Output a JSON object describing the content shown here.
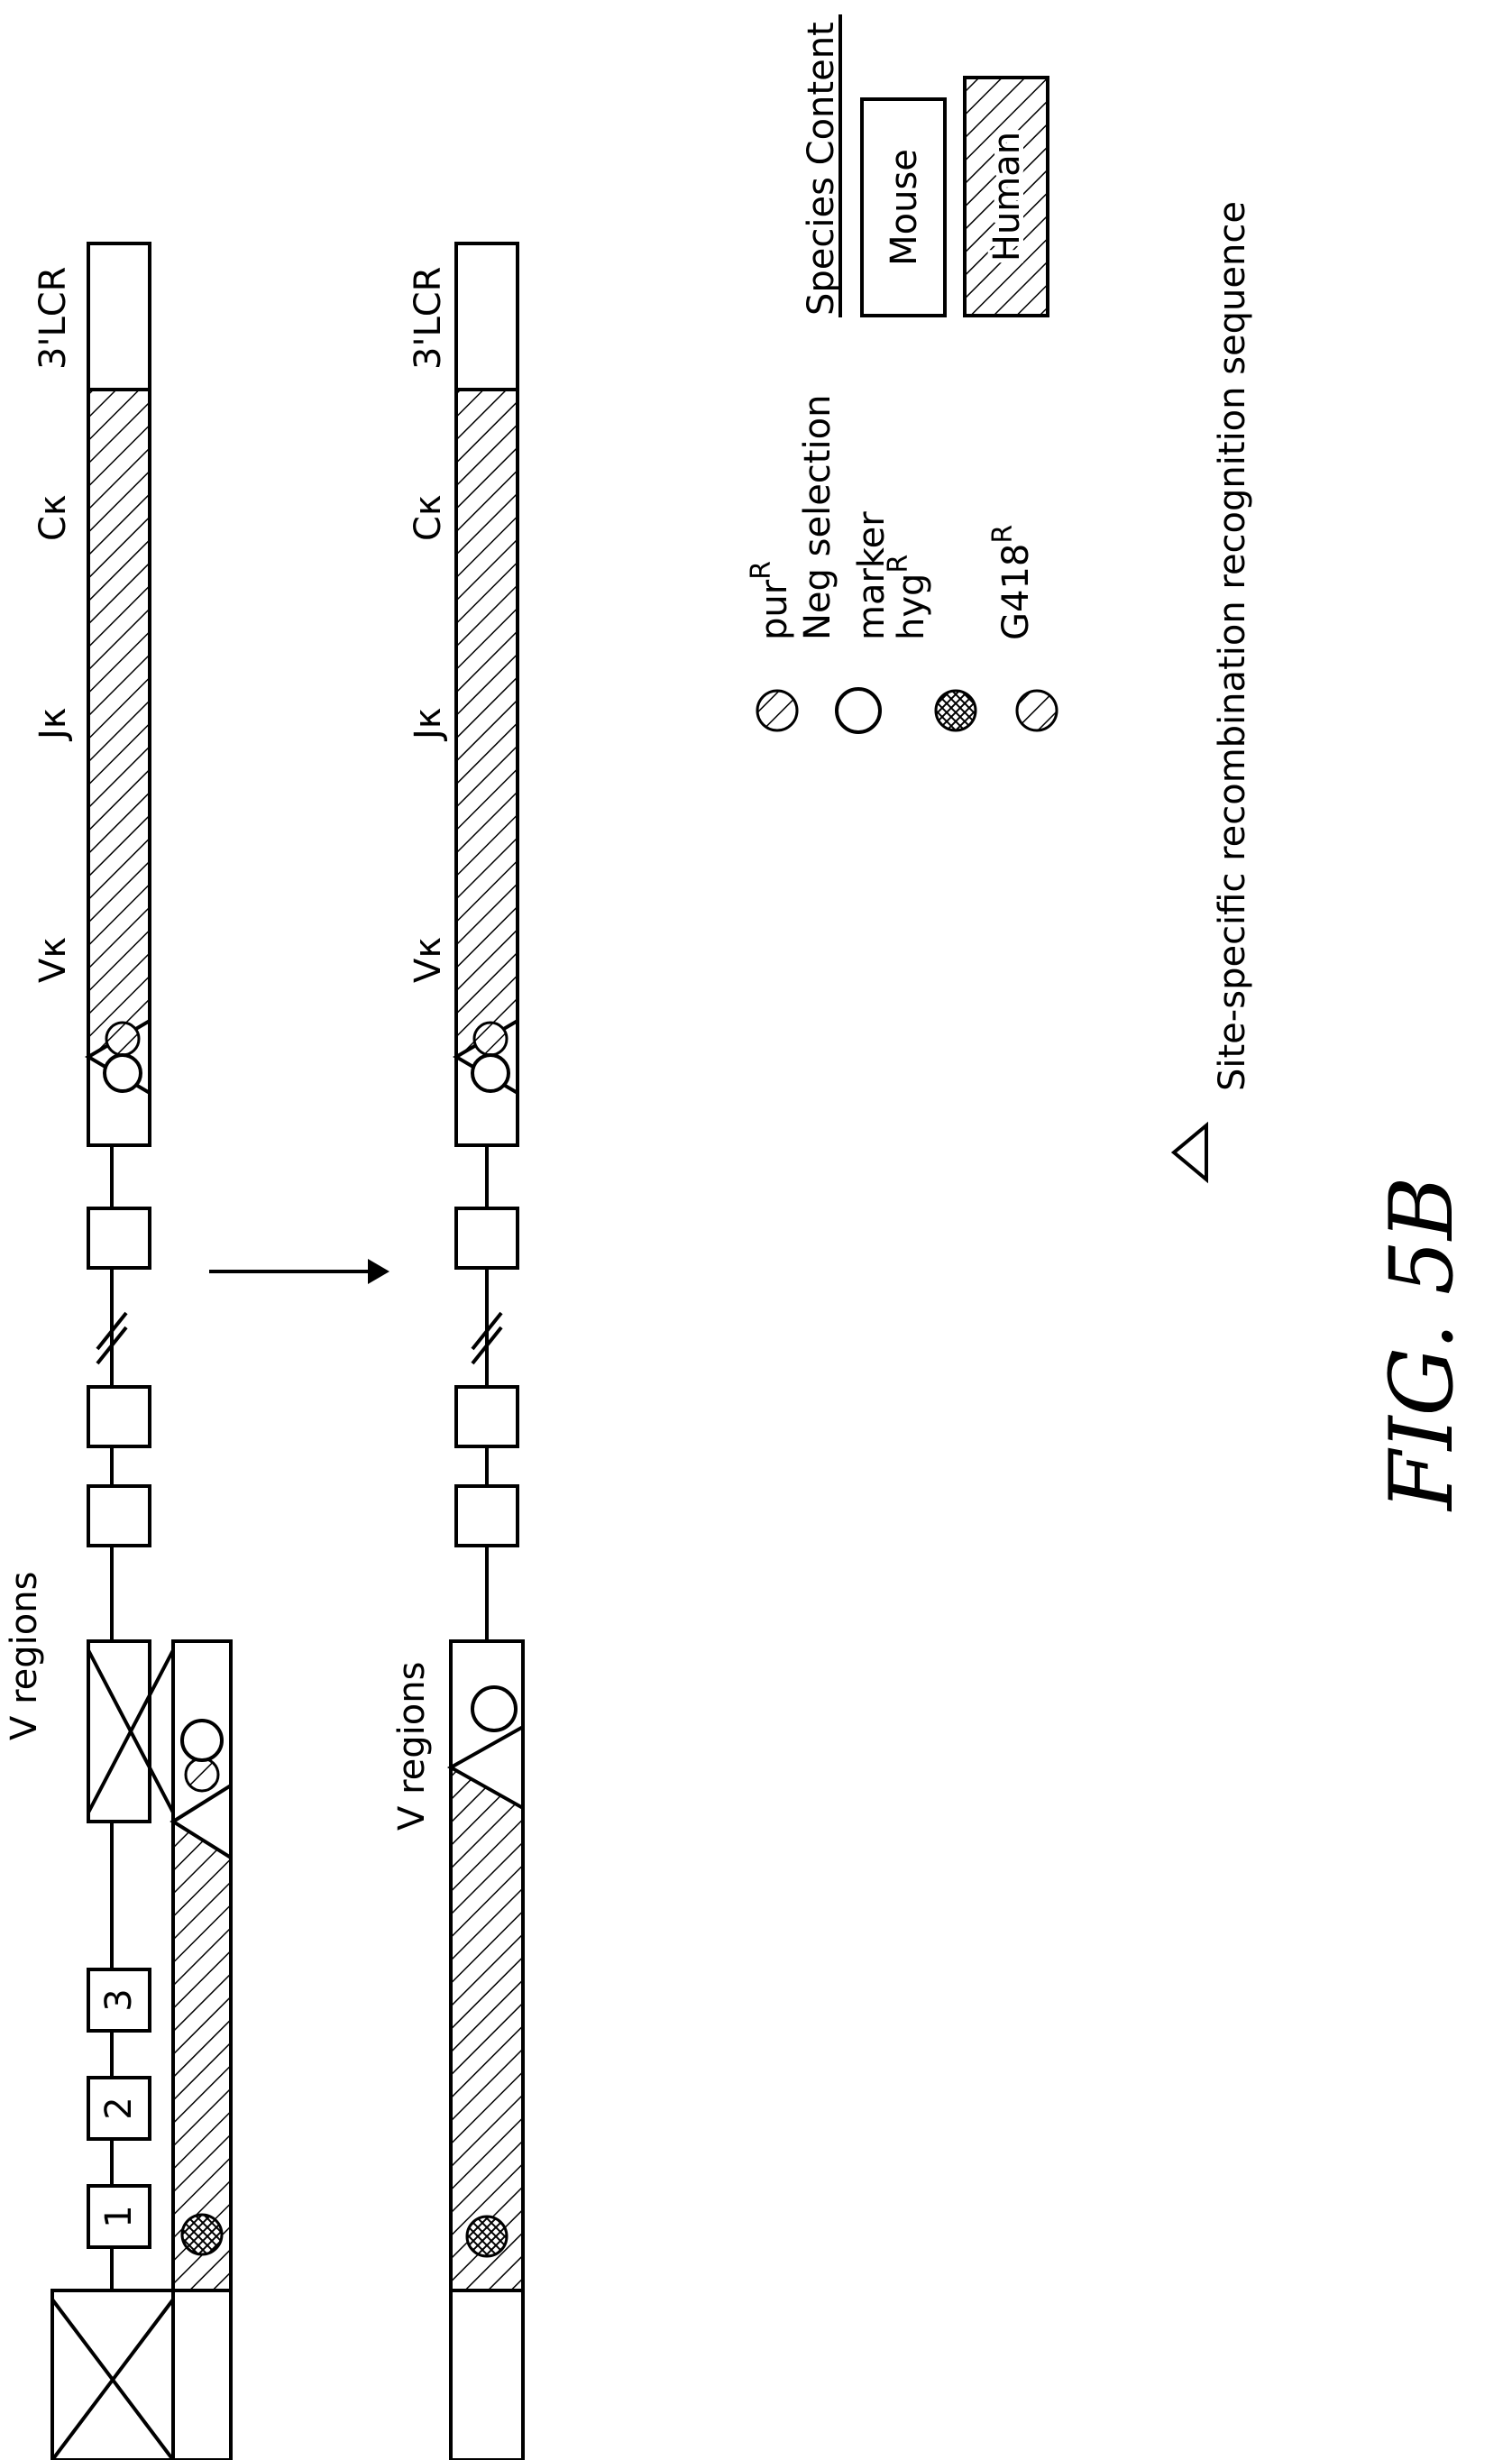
{
  "labels": {
    "v_regions_top": "V regions",
    "v_regions_bottom": "V regions",
    "vk": "Vκ",
    "jk": "Jκ",
    "ck": "Cκ",
    "lcr": "3'LCR",
    "box1": "1",
    "box2": "2",
    "box3": "3"
  },
  "legend": {
    "title": "Species Content",
    "mouse": "Mouse",
    "human": "Human",
    "pur": "pur",
    "pur_sup": "R",
    "neg_line1": "Neg selection",
    "neg_line2": "marker",
    "hyg": "hyg",
    "hyg_sup": "R",
    "g418": "G418",
    "g418_sup": "R",
    "site": "Site-specific recombination recognition sequence"
  },
  "figure_label": "FIG. 5B"
}
